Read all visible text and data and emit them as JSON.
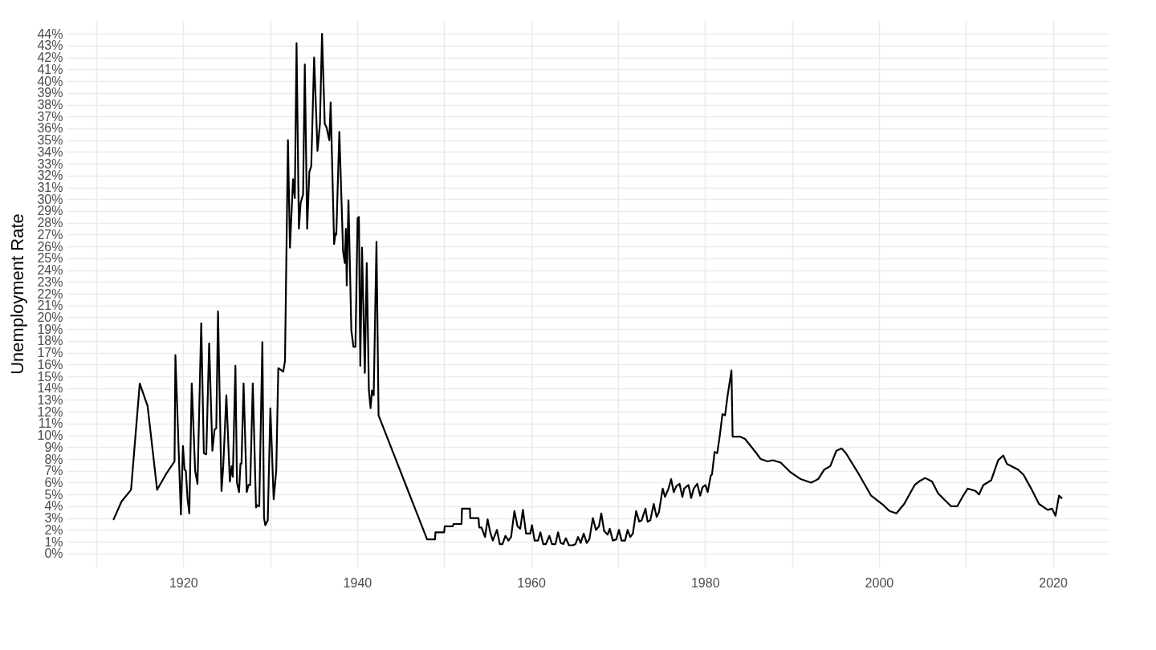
{
  "chart_data": {
    "type": "line",
    "ylabel": "Unemployment Rate",
    "grid": true,
    "line_style": "solid",
    "marker": "none",
    "xlim": [
      1906.5,
      2026.5
    ],
    "xticks": [
      {
        "value": 1910,
        "label": null
      },
      1920,
      {
        "value": 1930,
        "label": null
      },
      1940,
      {
        "value": 1950,
        "label": null
      },
      1960,
      {
        "value": 1970,
        "label": null
      },
      1980,
      {
        "value": 1990,
        "label": null
      },
      2000,
      {
        "value": 2010,
        "label": null
      },
      2020
    ],
    "ylim": [
      -1.1,
      45.1
    ],
    "yticks": [
      {
        "value": 0,
        "label": "0%"
      },
      {
        "value": 1,
        "label": "1%"
      },
      {
        "value": 2,
        "label": "2%"
      },
      {
        "value": 3,
        "label": "3%"
      },
      {
        "value": 4,
        "label": "4%"
      },
      {
        "value": 5,
        "label": "5%"
      },
      {
        "value": 6,
        "label": "6%"
      },
      {
        "value": 7,
        "label": "7%"
      },
      {
        "value": 8,
        "label": "8%"
      },
      {
        "value": 9,
        "label": "9%"
      },
      {
        "value": 10,
        "label": "10%"
      },
      {
        "value": 11,
        "label": "11%"
      },
      {
        "value": 12,
        "label": "12%"
      },
      {
        "value": 13,
        "label": "13%"
      },
      {
        "value": 14,
        "label": "14%"
      },
      {
        "value": 15,
        "label": "15%"
      },
      {
        "value": 16,
        "label": "16%"
      },
      {
        "value": 17,
        "label": "17%"
      },
      {
        "value": 18,
        "label": "18%"
      },
      {
        "value": 19,
        "label": "19%"
      },
      {
        "value": 20,
        "label": "20%"
      },
      {
        "value": 21,
        "label": "21%"
      },
      {
        "value": 22,
        "label": "22%"
      },
      {
        "value": 23,
        "label": "23%"
      },
      {
        "value": 24,
        "label": "24%"
      },
      {
        "value": 25,
        "label": "25%"
      },
      {
        "value": 26,
        "label": "26%"
      },
      {
        "value": 27,
        "label": "27%"
      },
      {
        "value": 28,
        "label": "28%"
      },
      {
        "value": 29,
        "label": "29%"
      },
      {
        "value": 30,
        "label": "30%"
      },
      {
        "value": 31,
        "label": "31%"
      },
      {
        "value": 32,
        "label": "32%"
      },
      {
        "value": 33,
        "label": "33%"
      },
      {
        "value": 34,
        "label": "34%"
      },
      {
        "value": 35,
        "label": "35%"
      },
      {
        "value": 36,
        "label": "36%"
      },
      {
        "value": 37,
        "label": "37%"
      },
      {
        "value": 38,
        "label": "38%"
      },
      {
        "value": 39,
        "label": "39%"
      },
      {
        "value": 40,
        "label": "40%"
      },
      {
        "value": 41,
        "label": "41%"
      },
      {
        "value": 42,
        "label": "42%"
      },
      {
        "value": 43,
        "label": "43%"
      },
      {
        "value": 44,
        "label": "44%"
      }
    ],
    "series": [
      {
        "color": "#000000",
        "x": [
          1912,
          1912.9,
          1914,
          1915,
          1915.9,
          1917,
          1918,
          1919,
          1919.1,
          1919.73,
          1919.97,
          1920.15,
          1920.3,
          1920.5,
          1920.7,
          1920.98,
          1921.37,
          1921.64,
          1922.07,
          1922.37,
          1922.65,
          1922.98,
          1923.35,
          1923.6,
          1923.8,
          1924.0,
          1924.4,
          1924.6,
          1924.96,
          1925.36,
          1925.57,
          1925.7,
          1926.0,
          1926.18,
          1926.42,
          1926.58,
          1926.7,
          1926.94,
          1927.3,
          1927.5,
          1927.7,
          1928.0,
          1928.37,
          1928.5,
          1928.74,
          1929.1,
          1929.29,
          1929.44,
          1929.72,
          1930.02,
          1930.4,
          1930.7,
          1930.93,
          1931.5,
          1931.7,
          1932.04,
          1932.27,
          1932.63,
          1932.83,
          1933.03,
          1933.3,
          1933.5,
          1933.78,
          1933.98,
          1934.25,
          1934.5,
          1934.72,
          1935.05,
          1935.44,
          1935.72,
          1935.96,
          1936.27,
          1936.47,
          1936.8,
          1936.95,
          1937.35,
          1937.5,
          1937.6,
          1937.95,
          1938.38,
          1938.58,
          1938.7,
          1938.8,
          1939.0,
          1939.33,
          1939.57,
          1939.8,
          1940.05,
          1940.2,
          1940.36,
          1940.56,
          1940.88,
          1941.1,
          1941.35,
          1941.54,
          1941.7,
          1941.9,
          1942.22,
          1942.46,
          1948.04,
          1948.95,
          1949.0,
          1950.0,
          1950.07,
          1951.0,
          1951.08,
          1952.0,
          1952.05,
          1952.97,
          1953.0,
          1953.95,
          1954.04,
          1954.3,
          1954.7,
          1955.0,
          1955.3,
          1955.6,
          1956.07,
          1956.4,
          1956.7,
          1957.05,
          1957.4,
          1957.7,
          1958.08,
          1958.44,
          1958.75,
          1959.06,
          1959.42,
          1959.9,
          1960.1,
          1960.4,
          1960.8,
          1961.07,
          1961.4,
          1961.7,
          1962.1,
          1962.4,
          1962.8,
          1963.1,
          1963.4,
          1963.7,
          1964.0,
          1964.35,
          1964.8,
          1965.1,
          1965.4,
          1965.7,
          1966.05,
          1966.4,
          1966.7,
          1967.1,
          1967.46,
          1967.8,
          1968.07,
          1968.4,
          1968.8,
          1969.04,
          1969.4,
          1969.8,
          1970.1,
          1970.4,
          1970.8,
          1971.1,
          1971.4,
          1971.7,
          1972.08,
          1972.44,
          1972.7,
          1973.15,
          1973.4,
          1973.7,
          1974.1,
          1974.44,
          1974.7,
          1975.13,
          1975.4,
          1975.8,
          1976.1,
          1976.4,
          1976.7,
          1977.07,
          1977.4,
          1977.6,
          1978.1,
          1978.4,
          1978.7,
          1979.1,
          1979.45,
          1979.7,
          1980.05,
          1980.3,
          1980.66,
          1980.8,
          1981.1,
          1981.4,
          1981.7,
          1982.0,
          1982.3,
          1982.6,
          1983.04,
          1983.17,
          1984.0,
          1984.6,
          1985.8,
          1986.4,
          1987.2,
          1987.8,
          1988.7,
          1989.8,
          1991.0,
          1992.2,
          1993.0,
          1993.7,
          1994.4,
          1995.1,
          1995.7,
          1996.2,
          1997.7,
          1999.1,
          2000.5,
          2001.2,
          2002.0,
          2002.9,
          2004.1,
          2004.6,
          2005.3,
          2006.1,
          2006.8,
          2007.6,
          2008.3,
          2009.0,
          2009.6,
          2010.2,
          2011.1,
          2011.5,
          2012.0,
          2012.9,
          2013.7,
          2014.3,
          2014.7,
          2016.0,
          2016.6,
          2017.5,
          2018.4,
          2019.4,
          2019.9,
          2020.3,
          2020.7,
          2021.0
        ],
        "values": [
          2.9,
          4.4,
          5.4,
          14.4,
          12.5,
          5.4,
          6.7,
          7.8,
          16.8,
          3.3,
          9.1,
          7.1,
          7.0,
          4.6,
          3.4,
          14.4,
          7.0,
          5.9,
          19.5,
          8.5,
          8.4,
          17.8,
          8.7,
          10.5,
          10.6,
          20.5,
          5.3,
          7.4,
          13.4,
          6.1,
          7.4,
          6.5,
          15.9,
          6.0,
          5.2,
          7.6,
          7.6,
          14.4,
          5.2,
          5.8,
          5.8,
          14.4,
          3.9,
          4.1,
          4.0,
          17.9,
          3.0,
          2.4,
          2.8,
          12.3,
          4.6,
          7.1,
          15.7,
          15.4,
          16.3,
          35.0,
          25.9,
          31.7,
          30.1,
          43.2,
          27.5,
          29.7,
          30.4,
          41.4,
          27.5,
          32.3,
          32.8,
          42.0,
          34.1,
          36.4,
          44.0,
          36.4,
          36.1,
          35.0,
          38.2,
          26.2,
          27.1,
          27.0,
          35.7,
          25.6,
          24.6,
          27.5,
          22.7,
          29.9,
          18.9,
          17.5,
          17.5,
          28.4,
          28.5,
          15.9,
          25.9,
          15.3,
          24.6,
          13.8,
          12.3,
          13.8,
          13.4,
          26.4,
          11.7,
          1.2,
          1.2,
          1.8,
          1.8,
          2.3,
          2.3,
          2.5,
          2.5,
          3.8,
          3.8,
          3.0,
          3.0,
          2.2,
          2.2,
          1.4,
          2.9,
          1.8,
          1.1,
          2.0,
          0.8,
          0.8,
          1.5,
          1.1,
          1.4,
          3.6,
          2.3,
          2.1,
          3.7,
          1.7,
          1.7,
          2.4,
          1.1,
          1.1,
          1.8,
          0.8,
          0.8,
          1.5,
          0.8,
          0.8,
          1.8,
          0.9,
          0.8,
          1.3,
          0.7,
          0.7,
          0.8,
          1.4,
          0.9,
          1.7,
          0.9,
          1.2,
          3.0,
          2.0,
          2.3,
          3.4,
          1.9,
          1.6,
          2.1,
          1.1,
          1.2,
          2.0,
          1.1,
          1.1,
          2.0,
          1.4,
          1.7,
          3.6,
          2.7,
          2.8,
          3.8,
          2.7,
          2.8,
          4.2,
          3.1,
          3.5,
          5.5,
          4.8,
          5.5,
          6.3,
          5.2,
          5.7,
          5.9,
          4.8,
          5.5,
          5.8,
          4.7,
          5.5,
          5.9,
          4.9,
          5.6,
          5.8,
          5.2,
          6.6,
          6.7,
          8.6,
          8.5,
          10.0,
          11.8,
          11.7,
          13.4,
          15.5,
          9.9,
          9.9,
          9.7,
          8.6,
          8.0,
          7.8,
          7.9,
          7.7,
          6.9,
          6.3,
          6.0,
          6.3,
          7.1,
          7.4,
          8.7,
          8.9,
          8.5,
          6.7,
          4.9,
          4.1,
          3.6,
          3.4,
          4.2,
          5.8,
          6.1,
          6.4,
          6.1,
          5.1,
          4.5,
          4.0,
          4.0,
          4.8,
          5.5,
          5.3,
          5.0,
          5.8,
          6.2,
          7.9,
          8.3,
          7.6,
          7.1,
          6.7,
          5.5,
          4.2,
          3.7,
          3.8,
          3.2,
          4.9,
          4.7
        ]
      }
    ]
  }
}
